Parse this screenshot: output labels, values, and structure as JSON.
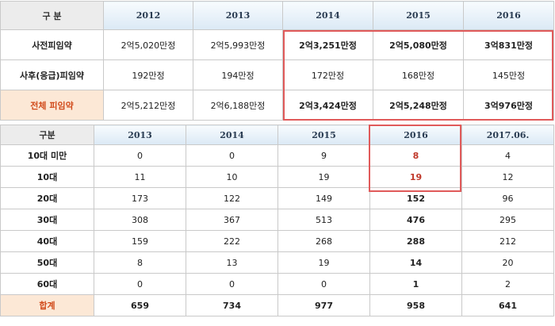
{
  "table1": {
    "corner": "구 분",
    "years": [
      "2012",
      "2013",
      "2014",
      "2015",
      "2016"
    ],
    "rows": [
      {
        "label": "사전피임약",
        "values": [
          "2억5,020만정",
          "2억5,993만정",
          "2억3,251만정",
          "2억5,080만정",
          "3억831만정"
        ]
      },
      {
        "label": "사후(응급)피임약",
        "values": [
          "192만정",
          "194만정",
          "172만정",
          "168만정",
          "145만정"
        ]
      },
      {
        "label": "전체  피임약",
        "values": [
          "2억5,212만정",
          "2억6,188만정",
          "2억3,424만정",
          "2억5,248만정",
          "3억976만정"
        ]
      }
    ]
  },
  "table2": {
    "corner": "구분",
    "years": [
      "2013",
      "2014",
      "2015",
      "2016",
      "2017.06."
    ],
    "rows": [
      {
        "label": "10대  미만",
        "values": [
          "0",
          "0",
          "9",
          "8",
          "4"
        ]
      },
      {
        "label": "10대",
        "values": [
          "11",
          "10",
          "19",
          "19",
          "12"
        ]
      },
      {
        "label": "20대",
        "values": [
          "173",
          "122",
          "149",
          "152",
          "96"
        ]
      },
      {
        "label": "30대",
        "values": [
          "308",
          "367",
          "513",
          "476",
          "295"
        ]
      },
      {
        "label": "40대",
        "values": [
          "159",
          "222",
          "268",
          "288",
          "212"
        ]
      },
      {
        "label": "50대",
        "values": [
          "8",
          "13",
          "19",
          "14",
          "20"
        ]
      },
      {
        "label": "60대",
        "values": [
          "0",
          "0",
          "0",
          "1",
          "2"
        ]
      },
      {
        "label": "합계",
        "values": [
          "659",
          "734",
          "977",
          "958",
          "641"
        ]
      }
    ]
  },
  "colors": {
    "highlight_border": "#e05a5a",
    "total_label": "#d14a1a",
    "total_bg": "#fce8d6"
  }
}
